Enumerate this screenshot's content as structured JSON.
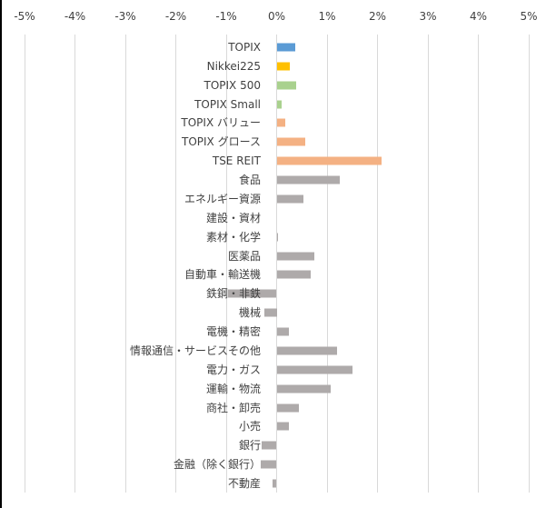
{
  "chart_data": {
    "type": "bar",
    "orientation": "horizontal",
    "title": "",
    "xlabel": "",
    "ylabel": "",
    "xlim": [
      -0.05,
      0.05
    ],
    "x_ticks": [
      "-5%",
      "-4%",
      "-3%",
      "-2%",
      "-1%",
      "0%",
      "1%",
      "2%",
      "3%",
      "4%",
      "5%"
    ],
    "x_axis_position": "top",
    "grid": true,
    "legend": null,
    "categories": [
      "TOPIX",
      "Nikkei225",
      "TOPIX 500",
      "TOPIX Small",
      "TOPIX バリュー",
      "TOPIX グロース",
      "TSE REIT",
      "食品",
      "エネルギー資源",
      "建設・資材",
      "素材・化学",
      "医薬品",
      "自動車・輸送機",
      "鉄鋼・非鉄",
      "機械",
      "電機・精密",
      "情報通信・サービスその他",
      "電力・ガス",
      "運輸・物流",
      "商社・卸売",
      "小売",
      "銀行",
      "金融（除く銀行）",
      "不動産"
    ],
    "values": [
      0.37,
      0.26,
      0.39,
      0.1,
      0.17,
      0.57,
      2.08,
      1.26,
      0.53,
      0.0,
      0.02,
      0.74,
      0.67,
      -0.97,
      -0.25,
      0.25,
      1.19,
      1.5,
      1.08,
      0.45,
      0.24,
      -0.3,
      -0.32,
      -0.09
    ],
    "units": "%",
    "colors": [
      "#5b9bd5",
      "#ffc000",
      "#a9d18e",
      "#a9d18e",
      "#f4b183",
      "#f4b183",
      "#f4b183",
      "#aeaaaa",
      "#aeaaaa",
      "#aeaaaa",
      "#aeaaaa",
      "#aeaaaa",
      "#aeaaaa",
      "#aeaaaa",
      "#aeaaaa",
      "#aeaaaa",
      "#aeaaaa",
      "#aeaaaa",
      "#aeaaaa",
      "#aeaaaa",
      "#aeaaaa",
      "#aeaaaa",
      "#aeaaaa",
      "#aeaaaa"
    ]
  }
}
